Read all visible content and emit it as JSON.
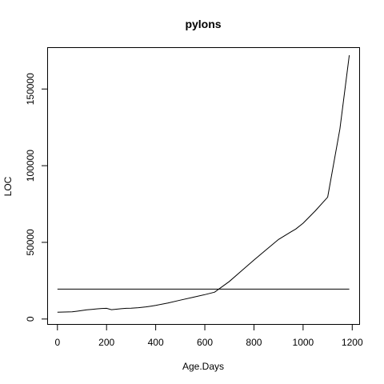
{
  "chart_data": {
    "type": "line",
    "title": "pylons",
    "xlabel": "Age.Days",
    "ylabel": "LOC",
    "xlim": [
      -40,
      1230
    ],
    "ylim": [
      -3500,
      177000
    ],
    "x_ticks": [
      0,
      200,
      400,
      600,
      800,
      1000,
      1200
    ],
    "x_tick_labels": [
      "0",
      "200",
      "400",
      "600",
      "800",
      "1000",
      "1200"
    ],
    "y_ticks": [
      0,
      50000,
      100000,
      150000
    ],
    "y_tick_labels": [
      "0",
      "50000",
      "100000",
      "150000"
    ],
    "grid": false,
    "legend": "none",
    "series": [
      {
        "x": [
          0,
          30,
          60,
          80,
          100,
          120,
          140,
          160,
          180,
          200,
          220,
          240,
          260,
          280,
          300,
          330,
          360,
          380,
          400,
          450,
          500,
          550,
          600,
          640,
          700,
          750,
          800,
          850,
          900,
          950,
          970,
          1000,
          1050,
          1100,
          1150,
          1188
        ],
        "y": [
          4500,
          4600,
          4700,
          5100,
          5600,
          6000,
          6300,
          6600,
          6900,
          7000,
          6100,
          6400,
          6700,
          7000,
          7100,
          7400,
          7900,
          8400,
          8900,
          10500,
          12300,
          14100,
          15900,
          17500,
          24500,
          31500,
          38500,
          45200,
          51900,
          56800,
          58700,
          62500,
          70600,
          79500,
          124000,
          172000
        ],
        "color": "#000000"
      },
      {
        "x": [
          0,
          1188
        ],
        "y": [
          19500,
          19500
        ],
        "color": "#000000"
      }
    ]
  }
}
